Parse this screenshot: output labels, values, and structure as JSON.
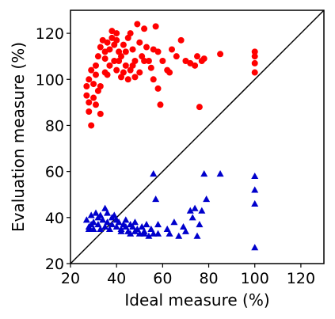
{
  "chart_data": {
    "type": "scatter",
    "xlabel": "Ideal measure (%)",
    "ylabel": "Evaluation measure (%)",
    "xlim": [
      20,
      130
    ],
    "ylim": [
      20,
      130
    ],
    "xticks": [
      20,
      40,
      60,
      80,
      100,
      120
    ],
    "yticks": [
      20,
      40,
      60,
      80,
      100,
      120
    ],
    "grid": false,
    "legend": "none",
    "reference_line": {
      "from": [
        20,
        20
      ],
      "to": [
        130,
        130
      ],
      "color": "#000000"
    },
    "series": [
      {
        "marker": "circle",
        "color": "#ff0000",
        "points": [
          [
            27,
            97
          ],
          [
            27,
            93
          ],
          [
            28,
            90
          ],
          [
            28,
            86
          ],
          [
            29,
            80
          ],
          [
            28,
            100
          ],
          [
            29,
            104
          ],
          [
            30,
            98
          ],
          [
            31,
            102
          ],
          [
            31,
            106
          ],
          [
            30,
            92
          ],
          [
            31,
            89
          ],
          [
            32,
            95
          ],
          [
            33,
            85
          ],
          [
            32,
            110
          ],
          [
            33,
            114
          ],
          [
            34,
            117
          ],
          [
            35,
            112
          ],
          [
            35,
            109
          ],
          [
            36,
            116
          ],
          [
            37,
            113
          ],
          [
            38,
            118
          ],
          [
            38,
            121
          ],
          [
            39,
            115
          ],
          [
            40,
            120
          ],
          [
            40,
            117
          ],
          [
            41,
            112
          ],
          [
            42,
            110
          ],
          [
            43,
            115
          ],
          [
            44,
            112
          ],
          [
            45,
            118
          ],
          [
            46,
            120
          ],
          [
            47,
            113
          ],
          [
            48,
            108
          ],
          [
            49,
            124
          ],
          [
            50,
            116
          ],
          [
            51,
            110
          ],
          [
            52,
            122
          ],
          [
            53,
            114
          ],
          [
            54,
            108
          ],
          [
            55,
            105
          ],
          [
            56,
            100
          ],
          [
            57,
            123
          ],
          [
            58,
            112
          ],
          [
            58,
            96
          ],
          [
            60,
            108
          ],
          [
            62,
            104
          ],
          [
            64,
            113
          ],
          [
            66,
            110
          ],
          [
            68,
            117
          ],
          [
            70,
            108
          ],
          [
            72,
            107
          ],
          [
            74,
            106
          ],
          [
            75,
            110
          ],
          [
            77,
            108
          ],
          [
            78,
            109
          ],
          [
            76,
            88
          ],
          [
            85,
            111
          ],
          [
            100,
            112
          ],
          [
            100,
            110
          ],
          [
            100,
            107
          ],
          [
            100,
            103
          ],
          [
            36,
            102
          ],
          [
            37,
            106
          ],
          [
            39,
            108
          ],
          [
            40,
            104
          ],
          [
            42,
            101
          ],
          [
            44,
            106
          ],
          [
            46,
            104
          ],
          [
            48,
            101
          ],
          [
            50,
            103
          ],
          [
            33,
            97
          ],
          [
            35,
            103
          ],
          [
            41,
            108
          ],
          [
            43,
            103
          ],
          [
            45,
            100
          ],
          [
            47,
            106
          ],
          [
            52,
            108
          ],
          [
            56,
            113
          ],
          [
            59,
            89
          ],
          [
            63,
            103
          ]
        ]
      },
      {
        "marker": "triangle",
        "color": "#0000cc",
        "points": [
          [
            27,
            39
          ],
          [
            28,
            36
          ],
          [
            28,
            35
          ],
          [
            29,
            37
          ],
          [
            29,
            41
          ],
          [
            30,
            35
          ],
          [
            30,
            38
          ],
          [
            31,
            42
          ],
          [
            32,
            40
          ],
          [
            32,
            37
          ],
          [
            33,
            35
          ],
          [
            33,
            41
          ],
          [
            34,
            39
          ],
          [
            35,
            36
          ],
          [
            35,
            44
          ],
          [
            36,
            42
          ],
          [
            36,
            38
          ],
          [
            37,
            35
          ],
          [
            38,
            40
          ],
          [
            38,
            37
          ],
          [
            39,
            41
          ],
          [
            40,
            36
          ],
          [
            40,
            39
          ],
          [
            41,
            38
          ],
          [
            42,
            35
          ],
          [
            42,
            34
          ],
          [
            43,
            37
          ],
          [
            44,
            36
          ],
          [
            44,
            39
          ],
          [
            45,
            34
          ],
          [
            46,
            33
          ],
          [
            46,
            37
          ],
          [
            47,
            36
          ],
          [
            48,
            34
          ],
          [
            48,
            38
          ],
          [
            49,
            35
          ],
          [
            50,
            33
          ],
          [
            51,
            36
          ],
          [
            52,
            34
          ],
          [
            52,
            33
          ],
          [
            53,
            37
          ],
          [
            54,
            32
          ],
          [
            55,
            35
          ],
          [
            56,
            33
          ],
          [
            56,
            59
          ],
          [
            57,
            48
          ],
          [
            58,
            37
          ],
          [
            58,
            33
          ],
          [
            62,
            35
          ],
          [
            63,
            33
          ],
          [
            65,
            38
          ],
          [
            67,
            32
          ],
          [
            69,
            36
          ],
          [
            70,
            34
          ],
          [
            72,
            43
          ],
          [
            73,
            40
          ],
          [
            74,
            44
          ],
          [
            75,
            32
          ],
          [
            76,
            37
          ],
          [
            77,
            43
          ],
          [
            78,
            59
          ],
          [
            79,
            48
          ],
          [
            85,
            59
          ],
          [
            100,
            58
          ],
          [
            100,
            52
          ],
          [
            100,
            46
          ],
          [
            100,
            27
          ]
        ]
      }
    ]
  }
}
